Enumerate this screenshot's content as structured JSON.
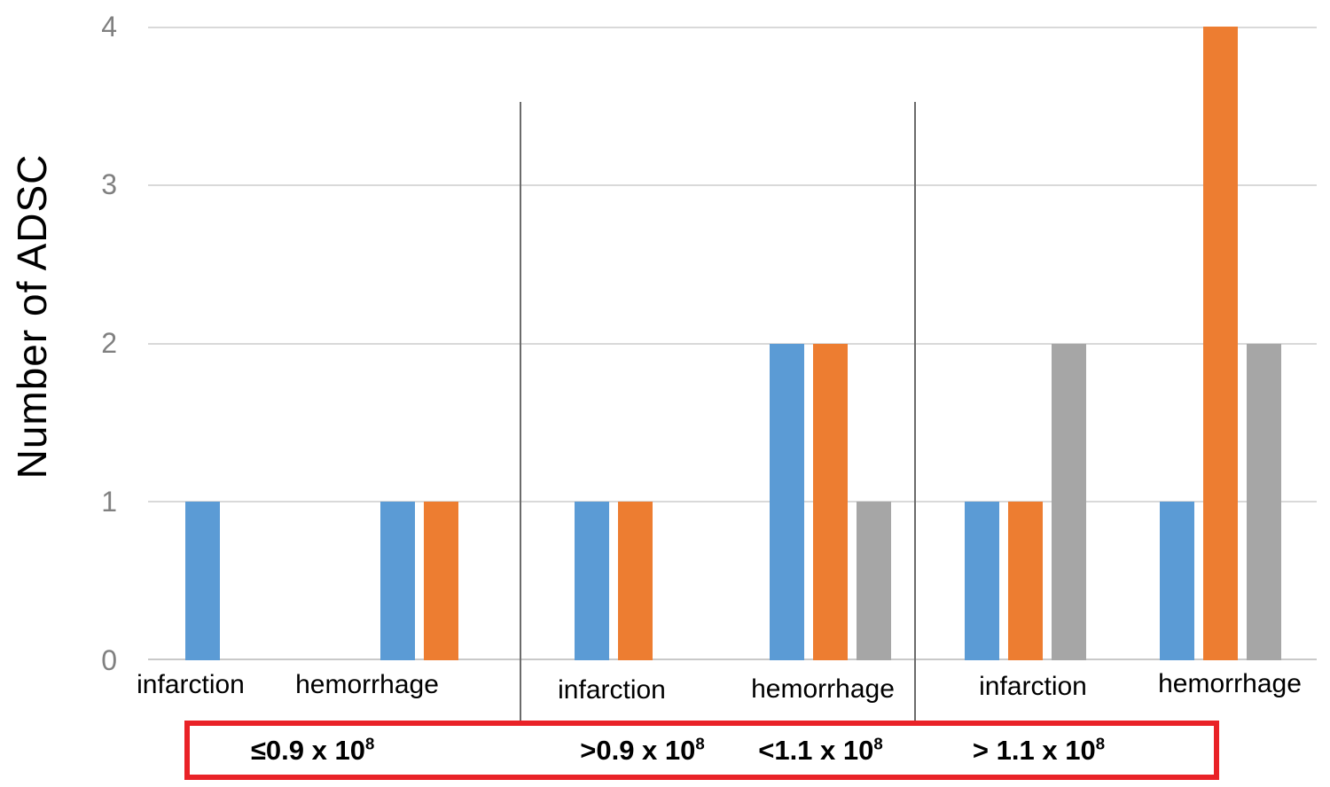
{
  "chart_data": {
    "type": "bar",
    "title": "",
    "ylabel": "Number of ADSC",
    "ylim": [
      0,
      4
    ],
    "yticks": [
      4,
      3,
      2,
      1,
      0
    ],
    "ytick_labels": [
      "4",
      "3",
      "2",
      "1",
      "0"
    ],
    "categories": [
      "infarction",
      "hemorrhage",
      "infarction",
      "hemorrhage",
      "infarction",
      "hemorrhage"
    ],
    "series": [
      {
        "name": "blue",
        "color": "#5B9BD5",
        "values": [
          1,
          1,
          1,
          2,
          1,
          1
        ]
      },
      {
        "name": "orange",
        "color": "#ED7D31",
        "values": [
          0,
          1,
          1,
          2,
          1,
          4
        ]
      },
      {
        "name": "gray",
        "color": "#A6A6A6",
        "values": [
          0,
          0,
          0,
          1,
          2,
          2
        ]
      }
    ],
    "legend_position": "none",
    "gridlines": true,
    "group_dividers_after_category": [
      2,
      4
    ]
  },
  "dose_axis": {
    "labels": [
      {
        "base": "≤0.9 x 10",
        "sup": "8"
      },
      {
        "base": ">0.9 x 10",
        "sup": "8"
      },
      {
        "base": "<1.1 x 10",
        "sup": "8"
      },
      {
        "base": "> 1.1 x 10",
        "sup": "8"
      }
    ]
  },
  "colors": {
    "blue_series": "#5B9BD5",
    "orange_series": "#ED7D31",
    "gray_series": "#A6A6A6",
    "gridline": "#D9D9D9",
    "axis_line": "#C9C9C9",
    "divider": "#6B6B6B",
    "tick_label": "#808080",
    "red_box": "#E92227"
  }
}
